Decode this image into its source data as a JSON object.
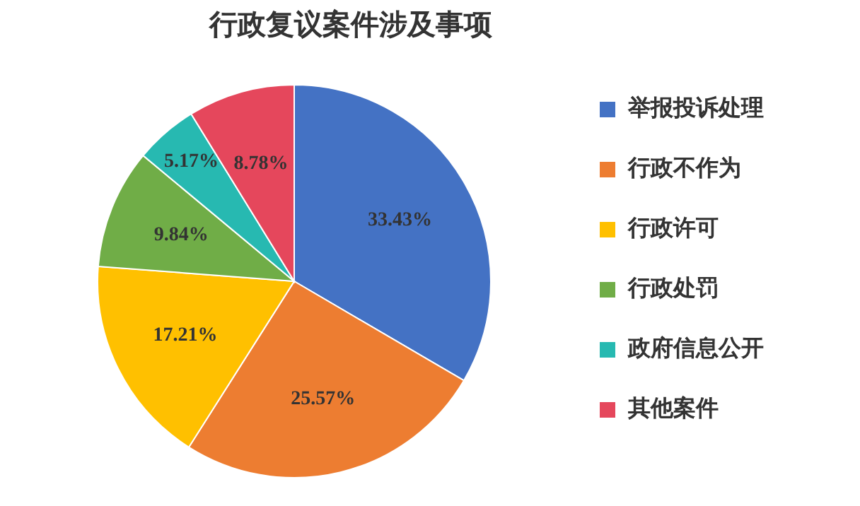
{
  "chart_data": {
    "type": "pie",
    "title": "行政复议案件涉及事项",
    "categories": [
      "举报投诉处理",
      "行政不作为",
      "行政许可",
      "行政处罚",
      "政府信息公开",
      "其他案件"
    ],
    "values": [
      33.43,
      25.57,
      17.21,
      9.84,
      5.17,
      8.78
    ],
    "colors": [
      "#4472c4",
      "#ed7d31",
      "#ffc000",
      "#70ad47",
      "#27b9b1",
      "#e5475c"
    ],
    "value_labels": [
      "33.43%",
      "25.57%",
      "17.21%",
      "9.84%",
      "5.17%",
      "8.78%"
    ],
    "legend": "right"
  }
}
